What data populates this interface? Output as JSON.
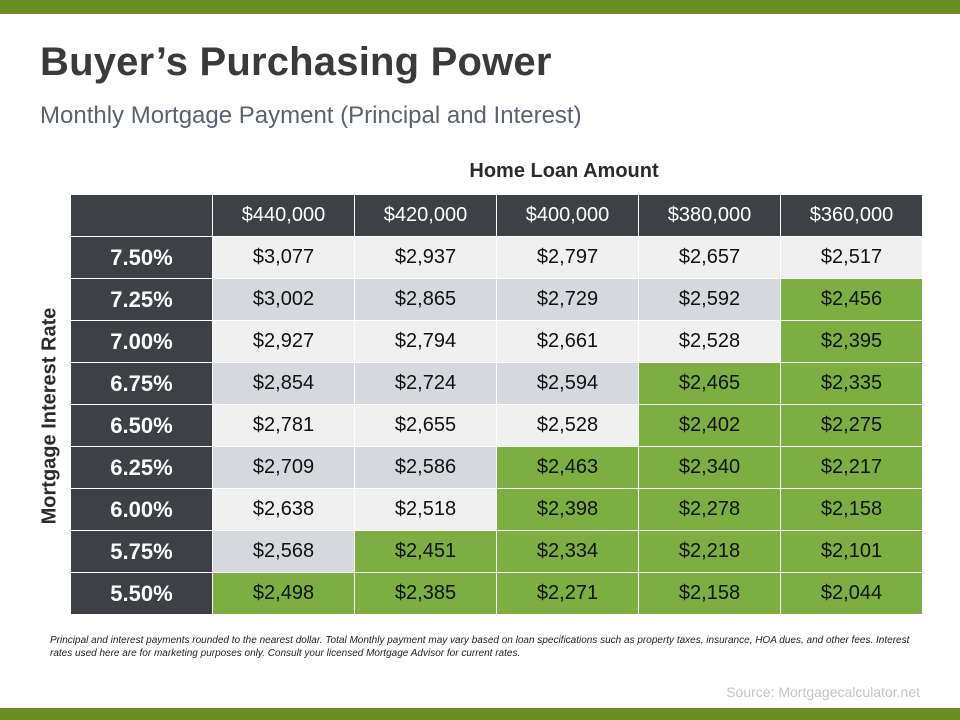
{
  "title": "Buyer’s Purchasing Power",
  "subtitle": "Monthly Mortgage Payment (Principal and Interest)",
  "column_axis_label": "Home Loan Amount",
  "row_axis_label": "Mortgage  Interest Rate",
  "columns": [
    "$440,000",
    "$420,000",
    "$400,000",
    "$380,000",
    "$360,000"
  ],
  "rows": [
    {
      "rate": "7.50%",
      "cells": [
        "$3,077",
        "$2,937",
        "$2,797",
        "$2,657",
        "$2,517"
      ],
      "highlight_from": 5
    },
    {
      "rate": "7.25%",
      "cells": [
        "$3,002",
        "$2,865",
        "$2,729",
        "$2,592",
        "$2,456"
      ],
      "highlight_from": 4
    },
    {
      "rate": "7.00%",
      "cells": [
        "$2,927",
        "$2,794",
        "$2,661",
        "$2,528",
        "$2,395"
      ],
      "highlight_from": 4
    },
    {
      "rate": "6.75%",
      "cells": [
        "$2,854",
        "$2,724",
        "$2,594",
        "$2,465",
        "$2,335"
      ],
      "highlight_from": 3
    },
    {
      "rate": "6.50%",
      "cells": [
        "$2,781",
        "$2,655",
        "$2,528",
        "$2,402",
        "$2,275"
      ],
      "highlight_from": 3
    },
    {
      "rate": "6.25%",
      "cells": [
        "$2,709",
        "$2,586",
        "$2,463",
        "$2,340",
        "$2,217"
      ],
      "highlight_from": 2
    },
    {
      "rate": "6.00%",
      "cells": [
        "$2,638",
        "$2,518",
        "$2,398",
        "$2,278",
        "$2,158"
      ],
      "highlight_from": 2
    },
    {
      "rate": "5.75%",
      "cells": [
        "$2,568",
        "$2,451",
        "$2,334",
        "$2,218",
        "$2,101"
      ],
      "highlight_from": 1
    },
    {
      "rate": "5.50%",
      "cells": [
        "$2,498",
        "$2,385",
        "$2,271",
        "$2,158",
        "$2,044"
      ],
      "highlight_from": 0
    }
  ],
  "disclaimer": "Principal and interest payments rounded to the nearest dollar. Total Monthly payment may vary based on loan specifications such as property taxes, insurance, HOA dues, and other fees. Interest rates used here are for marketing purposes only. Consult your licensed Mortgage Advisor for current rates.",
  "source": "Source:  Mortgagecalculator.net",
  "colors": {
    "accent_bar": "#6b8e23",
    "header_dark": "#3d4045",
    "highlight_green": "#7cae42",
    "row_light": "#f0f0f0",
    "row_gray": "#d5d8dd"
  }
}
